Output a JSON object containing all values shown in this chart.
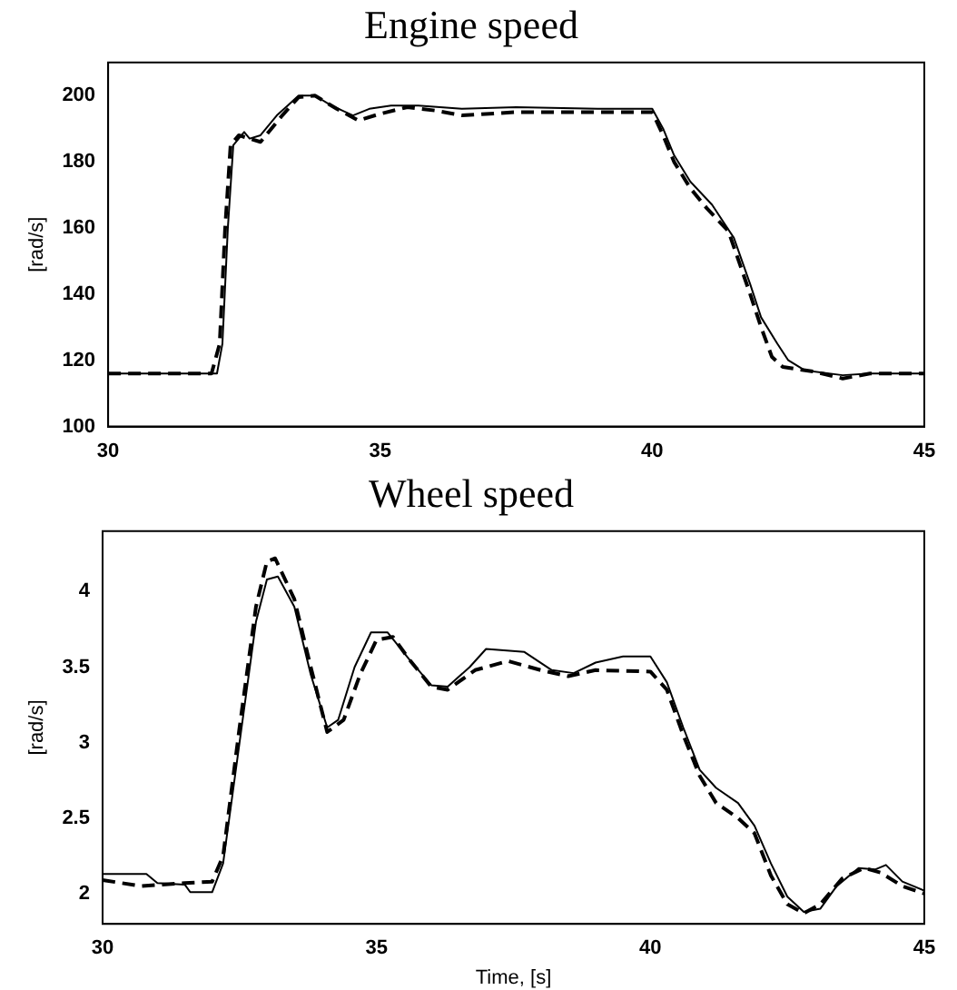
{
  "chart_data": [
    {
      "type": "line",
      "title": "Engine speed",
      "ylabel": "[rad/s]",
      "xlim": [
        30,
        45
      ],
      "xticks": [
        30,
        35,
        40,
        45
      ],
      "ylim": [
        100,
        210
      ],
      "yticks": [
        100,
        120,
        140,
        160,
        180,
        200
      ],
      "grid": false,
      "legend": false,
      "marker": "none",
      "series": [
        {
          "color": "#000000",
          "line_style": "solid",
          "x": [
            30,
            32,
            32.1,
            32.2,
            32.3,
            32.4,
            32.5,
            32.6,
            32.8,
            33.1,
            33.3,
            33.5,
            33.8,
            34.1,
            34.5,
            34.8,
            35.2,
            35.7,
            36.5,
            37.5,
            39,
            40,
            40.2,
            40.4,
            40.7,
            41.1,
            41.5,
            41.8,
            42,
            42.3,
            42.5,
            42.8,
            43.5,
            44,
            45
          ],
          "values": [
            116,
            116,
            125,
            160,
            185,
            187,
            189,
            187,
            188,
            194,
            197,
            200,
            200,
            197,
            194,
            196,
            197,
            197,
            196,
            196.5,
            196,
            196,
            190,
            182,
            174,
            167,
            157,
            143,
            133,
            125,
            120,
            117,
            115.5,
            116,
            116
          ]
        },
        {
          "color": "#000000",
          "line_style": "dashed",
          "x": [
            30,
            31.9,
            32.05,
            32.15,
            32.25,
            32.4,
            32.8,
            33.2,
            33.5,
            33.8,
            34.2,
            34.6,
            35,
            35.5,
            36,
            36.5,
            37.5,
            38.5,
            40,
            40.2,
            40.4,
            40.7,
            41,
            41.4,
            41.8,
            42,
            42.2,
            42.4,
            43,
            43.5,
            44,
            45
          ],
          "values": [
            116,
            116,
            125,
            160,
            185,
            188,
            186,
            194,
            199.5,
            200,
            196,
            192.5,
            194.5,
            196.5,
            195.5,
            194,
            195,
            195,
            195,
            188,
            180,
            172,
            166,
            159,
            140,
            130,
            121,
            118,
            116.5,
            114.5,
            116,
            116
          ]
        }
      ]
    },
    {
      "type": "line",
      "title": "Wheel speed",
      "xlabel": "Time, [s]",
      "ylabel": "[rad/s]",
      "xlim": [
        30,
        45
      ],
      "xticks": [
        30,
        35,
        40,
        45
      ],
      "ylim": [
        1.8,
        4.4
      ],
      "yticks": [
        2,
        2.5,
        3,
        3.5,
        4
      ],
      "grid": false,
      "legend": false,
      "marker": "none",
      "series": [
        {
          "color": "#000000",
          "line_style": "solid",
          "x": [
            30,
            30.8,
            31,
            31.5,
            31.6,
            32,
            32.2,
            32.5,
            32.8,
            33,
            33.2,
            33.5,
            33.8,
            34.1,
            34.3,
            34.6,
            34.9,
            35.2,
            35.6,
            36,
            36.3,
            36.7,
            37,
            37.7,
            38.2,
            38.6,
            39,
            39.5,
            40,
            40.3,
            40.6,
            40.9,
            41.2,
            41.6,
            41.9,
            42.2,
            42.5,
            42.8,
            43.1,
            43.4,
            43.8,
            44.1,
            44.3,
            44.6,
            45
          ],
          "values": [
            2.13,
            2.13,
            2.07,
            2.06,
            2.01,
            2.01,
            2.2,
            3.0,
            3.8,
            4.08,
            4.1,
            3.9,
            3.45,
            3.1,
            3.15,
            3.5,
            3.73,
            3.73,
            3.55,
            3.38,
            3.37,
            3.5,
            3.62,
            3.6,
            3.48,
            3.46,
            3.53,
            3.57,
            3.57,
            3.4,
            3.1,
            2.82,
            2.7,
            2.6,
            2.45,
            2.2,
            1.98,
            1.88,
            1.9,
            2.05,
            2.17,
            2.16,
            2.19,
            2.08,
            2.02
          ]
        },
        {
          "color": "#000000",
          "line_style": "dashed",
          "x": [
            30,
            30.7,
            31.5,
            32,
            32.2,
            32.5,
            32.8,
            33,
            33.15,
            33.5,
            33.8,
            34.1,
            34.4,
            34.7,
            35,
            35.3,
            35.6,
            36,
            36.3,
            36.8,
            37.4,
            38,
            38.5,
            39,
            40,
            40.3,
            40.6,
            40.9,
            41.2,
            41.6,
            41.9,
            42.2,
            42.5,
            42.8,
            43.1,
            43.5,
            43.9,
            44.2,
            44.6,
            45
          ],
          "values": [
            2.09,
            2.05,
            2.07,
            2.08,
            2.25,
            3.1,
            3.9,
            4.2,
            4.22,
            3.95,
            3.5,
            3.07,
            3.15,
            3.45,
            3.68,
            3.7,
            3.55,
            3.37,
            3.35,
            3.48,
            3.54,
            3.48,
            3.44,
            3.48,
            3.47,
            3.35,
            3.05,
            2.78,
            2.6,
            2.5,
            2.4,
            2.12,
            1.93,
            1.87,
            1.93,
            2.1,
            2.17,
            2.14,
            2.05,
            2.0
          ]
        }
      ]
    }
  ]
}
